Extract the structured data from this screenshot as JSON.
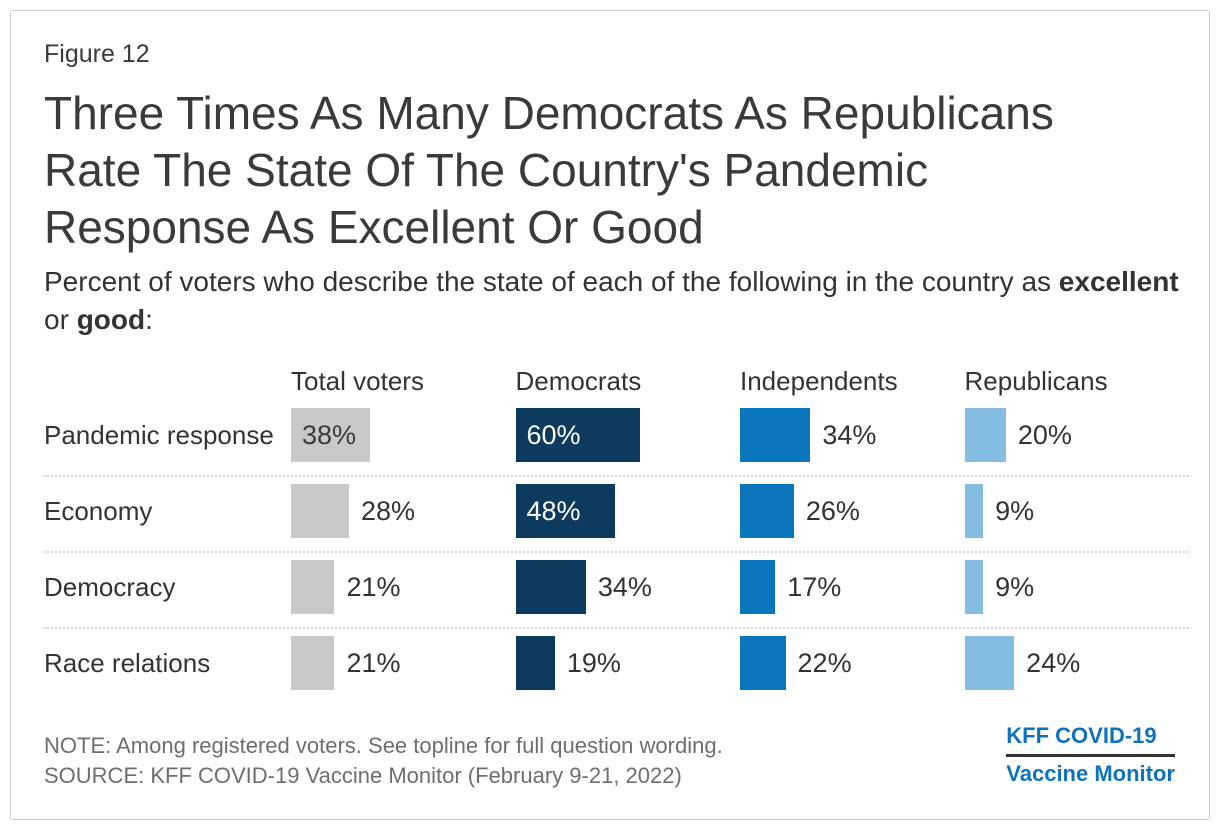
{
  "figure_label": "Figure 12",
  "title": "Three Times As Many Democrats As Republicans Rate The State Of The Country's Pandemic Response As Excellent Or Good",
  "subtitle": {
    "text_before": "Percent of voters who describe the state of each of the following in the country as ",
    "bold_1": "excellent",
    "text_middle": " or ",
    "bold_2": "good",
    "text_after": ":"
  },
  "chart_data": {
    "type": "bar",
    "orientation": "horizontal",
    "value_suffix": "%",
    "categories": [
      "Pandemic response",
      "Economy",
      "Democracy",
      "Race relations"
    ],
    "series": [
      {
        "name": "Total voters",
        "color": "#c9c9c9",
        "inside_label_color": "#3b3b3b",
        "values": [
          38,
          28,
          21,
          21
        ]
      },
      {
        "name": "Democrats",
        "color": "#0d3b5e",
        "inside_label_color": "#ffffff",
        "values": [
          60,
          48,
          34,
          19
        ]
      },
      {
        "name": "Independents",
        "color": "#0a76be",
        "inside_label_color": "#ffffff",
        "values": [
          34,
          26,
          17,
          22
        ]
      },
      {
        "name": "Republicans",
        "color": "#85bce2",
        "inside_label_color": "#3b3b3b",
        "values": [
          20,
          9,
          9,
          24
        ]
      }
    ],
    "legend_position": "column-headers",
    "grid": "none",
    "row_separators": "dotted"
  },
  "footer": {
    "note": "NOTE: Among registered voters. See topline for full question wording.",
    "source": "SOURCE: KFF COVID-19 Vaccine Monitor (February 9-21, 2022)",
    "logo_line_1": "KFF COVID-19",
    "logo_line_2": "Vaccine Monitor",
    "logo_color": "#0d73be",
    "logo_rule_color": "#333333"
  }
}
